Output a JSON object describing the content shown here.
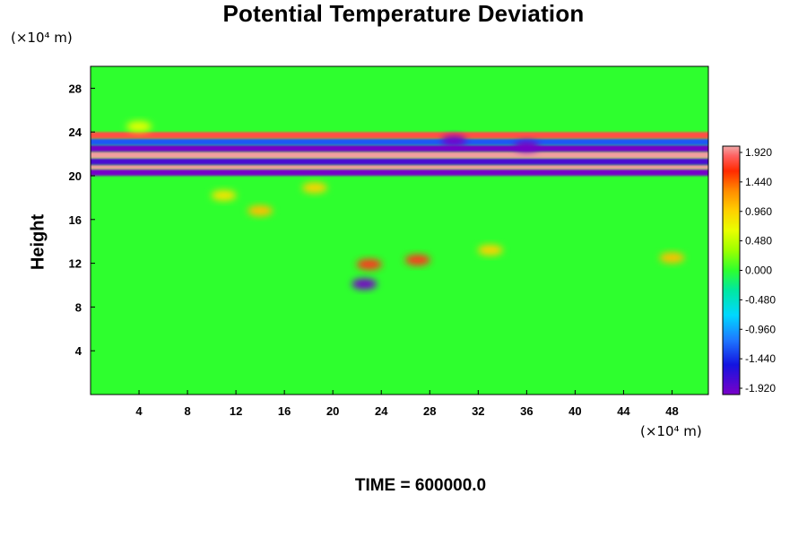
{
  "chart_data": {
    "type": "heatmap",
    "title": "Potential Temperature Deviation",
    "ylabel": "Height",
    "xlabel": "",
    "y_unit": "(×10⁴ m)",
    "x_unit": "(×10⁴ m)",
    "x_ticks": [
      "4",
      "8",
      "12",
      "16",
      "20",
      "24",
      "28",
      "32",
      "36",
      "40",
      "44",
      "48"
    ],
    "y_ticks": [
      "4",
      "8",
      "12",
      "16",
      "20",
      "24",
      "28"
    ],
    "xlim": [
      0,
      51
    ],
    "ylim": [
      0,
      30
    ],
    "colorbar_labels": [
      "1.920",
      "1.440",
      "0.960",
      "0.480",
      "0.000",
      "-0.480",
      "-0.960",
      "-1.440",
      "-1.920"
    ],
    "colorbar_range": [
      -1.92,
      1.92
    ],
    "bands": [
      {
        "y_min": 20.0,
        "y_max": 20.6,
        "value": -1.9
      },
      {
        "y_min": 20.6,
        "y_max": 21.0,
        "value": 1.9
      },
      {
        "y_min": 21.0,
        "y_max": 21.6,
        "value": -1.7
      },
      {
        "y_min": 21.6,
        "y_max": 22.2,
        "value": 1.9
      },
      {
        "y_min": 22.2,
        "y_max": 22.8,
        "value": -1.9
      },
      {
        "y_min": 22.8,
        "y_max": 23.4,
        "value": -1.2
      },
      {
        "y_min": 23.4,
        "y_max": 24.0,
        "value": 1.7
      }
    ],
    "blobs": [
      {
        "x": 11.0,
        "y": 18.2,
        "value": 0.8
      },
      {
        "x": 14.0,
        "y": 16.8,
        "value": 1.0
      },
      {
        "x": 18.5,
        "y": 18.9,
        "value": 0.9
      },
      {
        "x": 23.0,
        "y": 11.9,
        "value": 1.6
      },
      {
        "x": 27.0,
        "y": 12.3,
        "value": 1.6
      },
      {
        "x": 33.0,
        "y": 13.2,
        "value": 0.9
      },
      {
        "x": 48.0,
        "y": 12.5,
        "value": 1.0
      },
      {
        "x": 22.6,
        "y": 10.1,
        "value": -1.9
      },
      {
        "x": 30.0,
        "y": 23.2,
        "value": -1.9
      },
      {
        "x": 36.0,
        "y": 22.7,
        "value": -1.9
      },
      {
        "x": 4.0,
        "y": 24.5,
        "value": 0.6
      }
    ]
  },
  "footer": {
    "time_label": "TIME = 600000.0"
  }
}
